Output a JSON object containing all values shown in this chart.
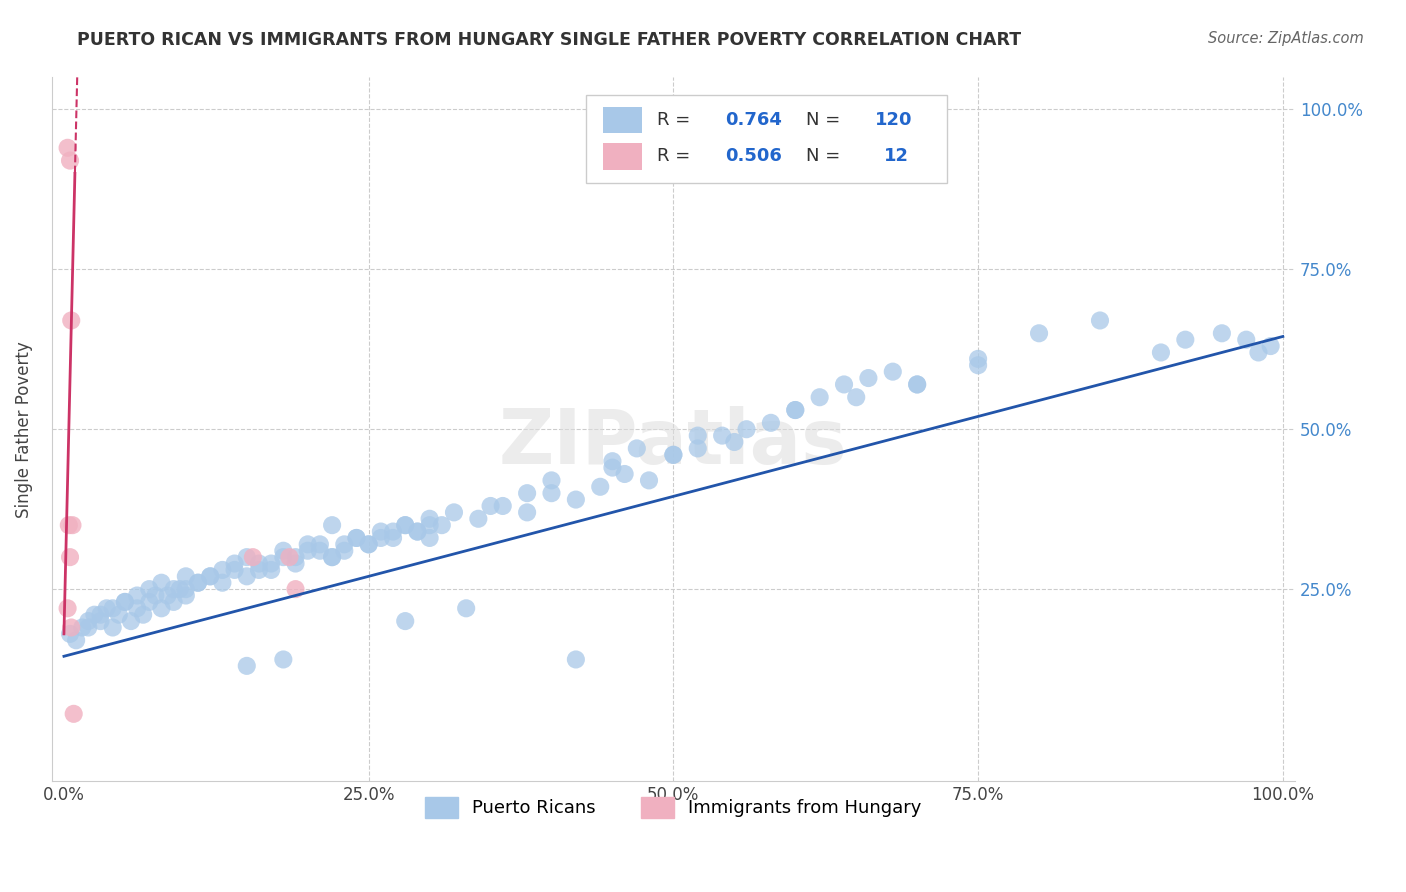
{
  "title": "PUERTO RICAN VS IMMIGRANTS FROM HUNGARY SINGLE FATHER POVERTY CORRELATION CHART",
  "source": "Source: ZipAtlas.com",
  "ylabel": "Single Father Poverty",
  "xlabel": "",
  "blue_R": 0.764,
  "blue_N": 120,
  "pink_R": 0.506,
  "pink_N": 12,
  "blue_color": "#a8c8e8",
  "pink_color": "#f0b0c0",
  "blue_line_color": "#2255aa",
  "pink_line_color": "#cc3366",
  "watermark_text": "ZIPatlas",
  "legend_label_blue": "Puerto Ricans",
  "legend_label_pink": "Immigrants from Hungary",
  "xlim": [
    -0.01,
    1.01
  ],
  "ylim": [
    -0.05,
    1.05
  ],
  "xticks": [
    0.0,
    0.25,
    0.5,
    0.75,
    1.0
  ],
  "yticks": [
    0.0,
    0.25,
    0.5,
    0.75,
    1.0
  ],
  "xticklabels": [
    "0.0%",
    "25.0%",
    "50.0%",
    "75.0%",
    "100.0%"
  ],
  "yticklabels_right": [
    "",
    "25.0%",
    "50.0%",
    "75.0%",
    "100.0%"
  ],
  "blue_slope": 0.5,
  "blue_intercept": 0.145,
  "pink_slope": 80.0,
  "pink_intercept": 0.18,
  "blue_x_data": [
    0.005,
    0.01,
    0.015,
    0.02,
    0.025,
    0.03,
    0.035,
    0.04,
    0.045,
    0.05,
    0.055,
    0.06,
    0.065,
    0.07,
    0.075,
    0.08,
    0.085,
    0.09,
    0.095,
    0.1,
    0.02,
    0.03,
    0.04,
    0.05,
    0.06,
    0.07,
    0.08,
    0.09,
    0.1,
    0.11,
    0.12,
    0.13,
    0.14,
    0.15,
    0.16,
    0.17,
    0.18,
    0.19,
    0.2,
    0.21,
    0.22,
    0.23,
    0.24,
    0.25,
    0.26,
    0.27,
    0.28,
    0.29,
    0.3,
    0.31,
    0.1,
    0.11,
    0.12,
    0.13,
    0.14,
    0.15,
    0.16,
    0.17,
    0.18,
    0.19,
    0.2,
    0.21,
    0.22,
    0.23,
    0.24,
    0.25,
    0.26,
    0.27,
    0.28,
    0.29,
    0.3,
    0.35,
    0.4,
    0.45,
    0.5,
    0.55,
    0.6,
    0.65,
    0.7,
    0.75,
    0.3,
    0.32,
    0.34,
    0.36,
    0.38,
    0.4,
    0.42,
    0.44,
    0.46,
    0.48,
    0.5,
    0.52,
    0.54,
    0.56,
    0.58,
    0.6,
    0.7,
    0.75,
    0.8,
    0.85,
    0.9,
    0.92,
    0.95,
    0.97,
    0.98,
    0.99,
    0.62,
    0.64,
    0.66,
    0.68,
    0.45,
    0.47,
    0.38,
    0.52,
    0.22,
    0.18,
    0.28,
    0.33,
    0.42,
    0.15
  ],
  "blue_y_data": [
    0.18,
    0.17,
    0.19,
    0.2,
    0.21,
    0.2,
    0.22,
    0.19,
    0.21,
    0.23,
    0.2,
    0.22,
    0.21,
    0.23,
    0.24,
    0.22,
    0.24,
    0.23,
    0.25,
    0.24,
    0.19,
    0.21,
    0.22,
    0.23,
    0.24,
    0.25,
    0.26,
    0.25,
    0.27,
    0.26,
    0.27,
    0.28,
    0.29,
    0.3,
    0.28,
    0.29,
    0.31,
    0.3,
    0.32,
    0.31,
    0.3,
    0.32,
    0.33,
    0.32,
    0.33,
    0.34,
    0.35,
    0.34,
    0.33,
    0.35,
    0.25,
    0.26,
    0.27,
    0.26,
    0.28,
    0.27,
    0.29,
    0.28,
    0.3,
    0.29,
    0.31,
    0.32,
    0.3,
    0.31,
    0.33,
    0.32,
    0.34,
    0.33,
    0.35,
    0.34,
    0.36,
    0.38,
    0.42,
    0.44,
    0.46,
    0.48,
    0.53,
    0.55,
    0.57,
    0.6,
    0.35,
    0.37,
    0.36,
    0.38,
    0.37,
    0.4,
    0.39,
    0.41,
    0.43,
    0.42,
    0.46,
    0.47,
    0.49,
    0.5,
    0.51,
    0.53,
    0.57,
    0.61,
    0.65,
    0.67,
    0.62,
    0.64,
    0.65,
    0.64,
    0.62,
    0.63,
    0.55,
    0.57,
    0.58,
    0.59,
    0.45,
    0.47,
    0.4,
    0.49,
    0.35,
    0.14,
    0.2,
    0.22,
    0.14,
    0.13
  ],
  "pink_x_data": [
    0.003,
    0.005,
    0.006,
    0.007,
    0.004,
    0.005,
    0.003,
    0.006,
    0.155,
    0.185,
    0.19,
    0.008
  ],
  "pink_y_data": [
    0.94,
    0.92,
    0.67,
    0.35,
    0.35,
    0.3,
    0.22,
    0.19,
    0.3,
    0.3,
    0.25,
    0.055
  ]
}
